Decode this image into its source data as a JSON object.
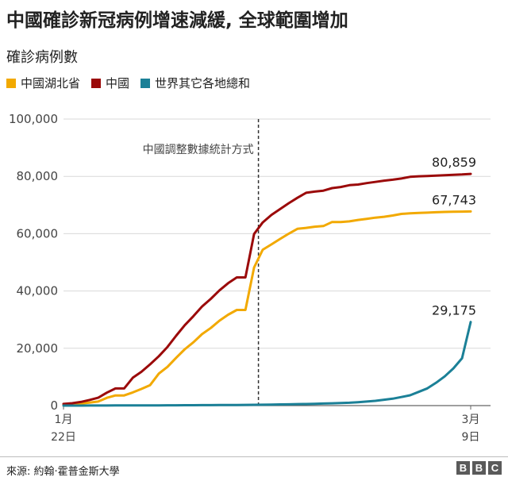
{
  "header": {
    "title": "中國確診新冠病例增速減緩, 全球範圍增加",
    "subtitle": "確診病例數"
  },
  "chart_data": {
    "type": "line",
    "title": "中國確診新冠病例增速減緩, 全球範圍增加",
    "ylabel": "確診病例數",
    "xlabel": "",
    "x_labels": [
      {
        "line1": "1月",
        "line2": "22日"
      },
      {
        "line1": "3月",
        "line2": "9日"
      }
    ],
    "x_count": 48,
    "ylim": [
      0,
      100000
    ],
    "yticks": [
      0,
      20000,
      40000,
      60000,
      80000,
      100000
    ],
    "ytick_labels": [
      "0",
      "20,000",
      "40,000",
      "60,000",
      "80,000",
      "100,000"
    ],
    "grid": true,
    "legend_position": "top-left",
    "annotation": {
      "text": "中國調整數據統計方式",
      "x_index": 22
    },
    "series": [
      {
        "name": "中國湖北省",
        "color": "#f2a900",
        "end_label": "67,743",
        "values": [
          444,
          549,
          729,
          1052,
          1423,
          2714,
          3554,
          3554,
          4586,
          5806,
          7153,
          11177,
          13522,
          16678,
          19665,
          22112,
          24953,
          27100,
          29631,
          31728,
          33366,
          33366,
          48206,
          54406,
          56249,
          58182,
          59989,
          61682,
          62031,
          62442,
          62662,
          64084,
          64084,
          64287,
          64786,
          65187,
          65596,
          65914,
          66337,
          66907,
          67103,
          67217,
          67332,
          67466,
          67592,
          67666,
          67707,
          67743
        ]
      },
      {
        "name": "中國",
        "color": "#9b0a0a",
        "end_label": "80,859",
        "values": [
          571,
          830,
          1287,
          1975,
          2744,
          4515,
          5974,
          5974,
          9714,
          11809,
          14411,
          17238,
          20471,
          24363,
          28060,
          31211,
          34598,
          37251,
          40235,
          42708,
          44730,
          44730,
          59882,
          63932,
          66576,
          68584,
          70635,
          72528,
          74279,
          74675,
          75002,
          75891,
          76288,
          76936,
          77150,
          77658,
          78064,
          78497,
          78824,
          79251,
          79824,
          80026,
          80151,
          80270,
          80409,
          80552,
          80651,
          80859
        ]
      },
      {
        "name": "世界其它各地總和",
        "color": "#1b8097",
        "end_label": "29,175",
        "values": [
          4,
          5,
          12,
          15,
          20,
          29,
          43,
          52,
          63,
          73,
          81,
          96,
          111,
          124,
          133,
          152,
          167,
          179,
          196,
          207,
          229,
          250,
          280,
          316,
          364,
          404,
          440,
          515,
          567,
          637,
          708,
          801,
          916,
          1006,
          1201,
          1425,
          1664,
          2047,
          2400,
          3000,
          3600,
          4800,
          6000,
          7950,
          10200,
          13000,
          16500,
          29175
        ]
      }
    ]
  },
  "footer": {
    "source": "來源:  約翰·霍普金斯大學",
    "brand": [
      "B",
      "B",
      "C"
    ]
  }
}
